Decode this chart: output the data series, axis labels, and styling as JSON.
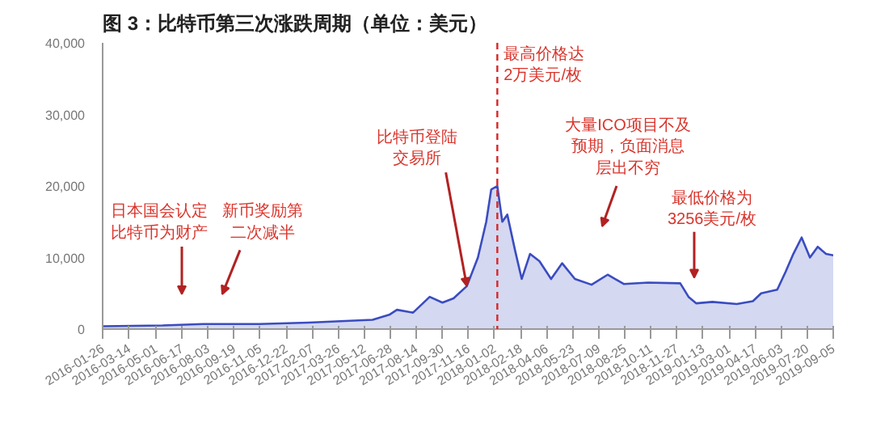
{
  "chart_data": {
    "type": "area",
    "title": "图 3：比特币第三次涨跌周期（单位：美元）",
    "x": [
      "2016-01-26",
      "2016-05-13",
      "2016-07-25",
      "2016-11-04",
      "2017-01-31",
      "2017-03-30",
      "2017-05-27",
      "2017-06-26",
      "2017-07-10",
      "2017-08-08",
      "2017-09-07",
      "2017-09-30",
      "2017-10-20",
      "2017-11-13",
      "2017-12-03",
      "2017-12-18",
      "2017-12-27",
      "2018-01-07",
      "2018-01-16",
      "2018-01-25",
      "2018-02-08",
      "2018-02-20",
      "2018-03-07",
      "2018-03-24",
      "2018-04-14",
      "2018-05-04",
      "2018-05-27",
      "2018-06-26",
      "2018-07-25",
      "2018-08-23",
      "2018-10-06",
      "2018-12-03",
      "2018-12-18",
      "2019-01-01",
      "2019-01-30",
      "2019-03-15",
      "2019-04-13",
      "2019-04-28",
      "2019-05-27",
      "2019-06-11",
      "2019-06-25",
      "2019-07-10",
      "2019-07-25",
      "2019-08-08",
      "2019-08-23",
      "2019-09-05"
    ],
    "series": [
      {
        "color": "#3a4cc0",
        "values": [
          400,
          500,
          700,
          700,
          900,
          1100,
          1300,
          2000,
          2700,
          2300,
          4500,
          3700,
          4300,
          6000,
          10000,
          15000,
          19500,
          20000,
          15000,
          16000,
          11000,
          7000,
          10500,
          9500,
          7000,
          9200,
          7000,
          6200,
          7600,
          6300,
          6500,
          6400,
          4500,
          3600,
          3800,
          3500,
          3900,
          5000,
          5500,
          8000,
          10500,
          12800,
          10000,
          11500,
          10500,
          10300
        ]
      }
    ],
    "xlim": [
      "2016-01-26",
      "2019-09-05"
    ],
    "xticks": [
      "2016-01-26",
      "2016-03-14",
      "2016-05-01",
      "2016-06-17",
      "2016-08-03",
      "2016-09-19",
      "2016-11-05",
      "2016-12-22",
      "2017-02-07",
      "2017-03-26",
      "2017-05-12",
      "2017-06-28",
      "2017-08-14",
      "2017-09-30",
      "2017-11-16",
      "2018-01-02",
      "2018-02-18",
      "2018-04-06",
      "2018-05-23",
      "2018-07-09",
      "2018-08-25",
      "2018-10-11",
      "2018-11-27",
      "2019-01-13",
      "2019-03-01",
      "2019-04-17",
      "2019-06-03",
      "2019-07-20",
      "2019-09-05"
    ],
    "ylim": [
      0,
      40000
    ],
    "yticks": [
      0,
      {
        "value": 10000,
        "label": "10,000"
      },
      {
        "value": 20000,
        "label": "20,000"
      },
      {
        "value": 30000,
        "label": "30,000"
      },
      {
        "value": 40000,
        "label": "40,000"
      }
    ],
    "grid": false,
    "ref_lines": [
      {
        "axis": "x",
        "value": "2018-01-07",
        "label": "最高价格达2万美元/枚",
        "color": "#d62728",
        "line_style": "dashed"
      }
    ],
    "annotations": [
      "日本国会认定比特币为财产",
      "新币奖励第二次减半",
      {
        "text": "比特币登陆交易所",
        "x": "2017-11-13",
        "y": 6000
      },
      "大量ICO项目不及预期，负面消息层出不穷",
      "最低价格为3256美元/枚"
    ]
  }
}
